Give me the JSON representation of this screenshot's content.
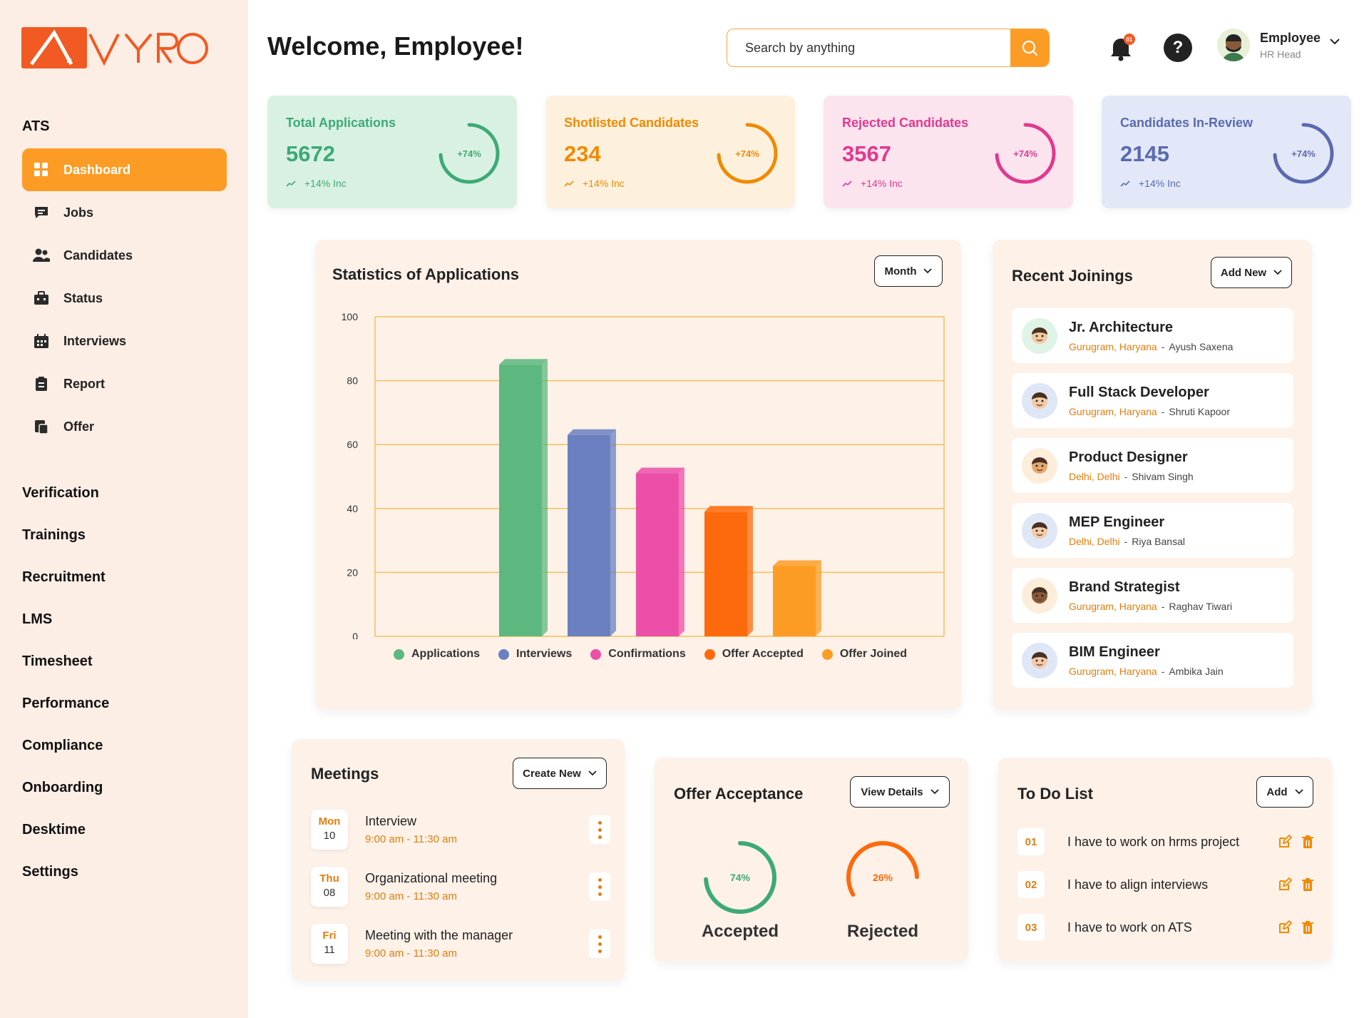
{
  "brand": {
    "logo_text": "AVYRO",
    "accent": "#f15a22"
  },
  "sidebar": {
    "section_title": "ATS",
    "items": [
      {
        "label": "Dashboard",
        "icon": "grid-icon",
        "active": true
      },
      {
        "label": "Jobs",
        "icon": "message-icon"
      },
      {
        "label": "Candidates",
        "icon": "users-icon"
      },
      {
        "label": "Status",
        "icon": "briefcase-icon"
      },
      {
        "label": "Interviews",
        "icon": "calendar-icon"
      },
      {
        "label": "Report",
        "icon": "clipboard-icon"
      },
      {
        "label": "Offer",
        "icon": "document-icon"
      }
    ],
    "sections": [
      "Verification",
      "Trainings",
      "Recruitment",
      "LMS",
      "Timesheet",
      "Performance",
      "Compliance",
      "Onboarding",
      "Desktime",
      "Settings"
    ]
  },
  "header": {
    "title": "Welcome, Employee!",
    "search_placeholder": "Search by anything",
    "notification_count": "01",
    "user_name": "Employee",
    "user_role": "HR Head"
  },
  "stats": [
    {
      "title": "Total Applications",
      "value": "5672",
      "inc": "+14% Inc",
      "ring_label": "+74%",
      "ring_percent": 74,
      "color": "#3daa76",
      "title_color": "#3daa76",
      "bg": "#d9f1e3"
    },
    {
      "title": "Shotlisted Candidates",
      "value": "234",
      "inc": "+14% Inc",
      "ring_label": "+74%",
      "ring_percent": 74,
      "color": "#f08a00",
      "title_color": "#f08a00",
      "bg": "#fdf1de"
    },
    {
      "title": "Rejected Candidates",
      "value": "3567",
      "inc": "+14% Inc",
      "ring_label": "+74%",
      "ring_percent": 74,
      "color": "#e1398f",
      "title_color": "#e1398f",
      "bg": "#fbe4ee"
    },
    {
      "title": "Candidates In-Review",
      "value": "2145",
      "inc": "+14% Inc",
      "ring_label": "+74%",
      "ring_percent": 74,
      "color": "#5a6ab0",
      "title_color": "#5a6ab0",
      "bg": "#e3e8f8"
    }
  ],
  "statistics": {
    "title": "Statistics of Applications",
    "filter_label": "Month"
  },
  "chart_data": {
    "type": "bar",
    "title": "Statistics of Applications",
    "categories": [
      "Applications",
      "Interviews",
      "Confirmations",
      "Offer Accepted",
      "Offer Joined"
    ],
    "values": [
      85,
      63,
      51,
      39,
      22
    ],
    "colors": [
      "#5cb87e",
      "#6a80c1",
      "#ec4fa8",
      "#fd6a0b",
      "#fd9c24"
    ],
    "ylim": [
      0,
      100
    ],
    "yticks": [
      "0",
      "20",
      "40",
      "60",
      "80",
      "100"
    ],
    "grid": true,
    "legend": "bottom"
  },
  "recent_joinings": {
    "title": "Recent Joinings",
    "button_label": "Add New",
    "items": [
      {
        "role": "Jr. Architecture",
        "location": "Gurugram, Haryana",
        "sep": "-",
        "name": "Ayush Saxena",
        "avatar_bg": "#dff3e7",
        "skin": "#f0c9a0"
      },
      {
        "role": "Full Stack Developer",
        "location": "Gurugram, Haryana",
        "sep": "-",
        "name": "Shruti Kapoor",
        "avatar_bg": "#dfe6f6",
        "skin": "#f3caa6"
      },
      {
        "role": "Product Designer",
        "location": "Delhi, Delhi",
        "sep": "-",
        "name": "Shivam Singh",
        "avatar_bg": "#fdeedb",
        "skin": "#e4a870"
      },
      {
        "role": "MEP Engineer",
        "location": "Delhi, Delhi",
        "sep": "-",
        "name": "Riya Bansal",
        "avatar_bg": "#dfe6f6",
        "skin": "#f3caa6"
      },
      {
        "role": "Brand Strategist",
        "location": "Gurugram, Haryana",
        "sep": "-",
        "name": "Raghav Tiwari",
        "avatar_bg": "#fdeedb",
        "skin": "#8a5a3c"
      },
      {
        "role": "BIM Engineer",
        "location": "Gurugram, Haryana",
        "sep": "-",
        "name": "Ambika Jain",
        "avatar_bg": "#dfe6f6",
        "skin": "#f3caa6"
      }
    ]
  },
  "meetings": {
    "title": "Meetings",
    "button_label": "Create New",
    "items": [
      {
        "day": "Mon",
        "date": "10",
        "title": "Interview",
        "time": "9:00 am - 11:30 am"
      },
      {
        "day": "Thu",
        "date": "08",
        "title": "Organizational meeting",
        "time": "9:00 am - 11:30 am"
      },
      {
        "day": "Fri",
        "date": "11",
        "title": "Meeting with the manager",
        "time": "9:00 am - 11:30 am"
      }
    ]
  },
  "offer_acceptance": {
    "title": "Offer Acceptance",
    "button_label": "View Details",
    "accepted": {
      "label": "Accepted",
      "value": "74%",
      "percent": 74,
      "color": "#3daa76"
    },
    "rejected": {
      "label": "Rejected",
      "value": "26%",
      "percent": 26,
      "color": "#fd6a0b"
    }
  },
  "todo": {
    "title": "To Do List",
    "button_label": "Add",
    "items": [
      {
        "num": "01",
        "text": "I have to work on hrms project"
      },
      {
        "num": "02",
        "text": "I have to align interviews"
      },
      {
        "num": "03",
        "text": "I have to work on ATS"
      }
    ]
  }
}
